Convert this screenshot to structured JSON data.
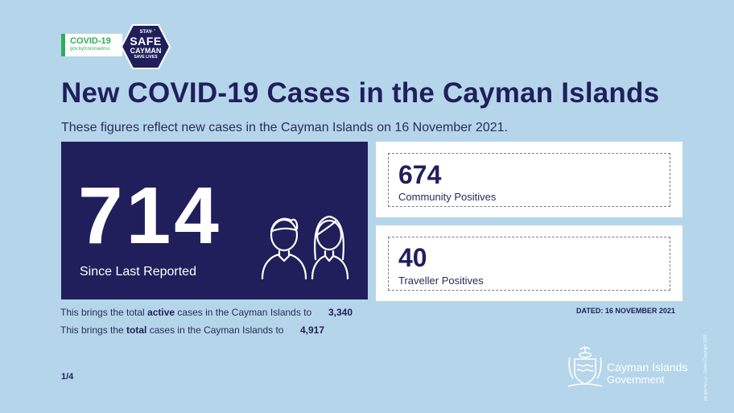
{
  "colors": {
    "background": "#b5d6ea",
    "navy": "#201f5c",
    "green": "#2fae5b",
    "white": "#ffffff"
  },
  "header": {
    "covid_label": "COVID-19",
    "covid_url": "gov.ky/coronavirus",
    "stay": "STAY",
    "safe": "SAFE",
    "cayman": "CAYMAN",
    "save_lives": "SAVE LIVES"
  },
  "title": "New COVID-19 Cases in the Cayman Islands",
  "subtitle": "These figures reflect new cases in the Cayman Islands on 16 November 2021.",
  "main_stat": {
    "value": "714",
    "label": "Since Last Reported"
  },
  "cards": [
    {
      "value": "674",
      "label": "Community Positives"
    },
    {
      "value": "40",
      "label": "Traveller Positives"
    }
  ],
  "totals": {
    "active_prefix": "This brings the total ",
    "active_bold": "active",
    "active_suffix": " cases in the Cayman Islands to",
    "active_value": "3,340",
    "total_prefix": "This brings the ",
    "total_bold": "total",
    "total_suffix": " cases in the Cayman Islands to",
    "total_value": "4,917"
  },
  "dated": "DATED: 16 NOVEMBER 2021",
  "page": "1/4",
  "footer": {
    "gov_name": "Cayman Islands",
    "gov_sub": "Government",
    "credit": "gis.gov.ky | © Crown Copyright 2021"
  },
  "icons": {
    "crest": "cayman-crest-icon",
    "people": "people-icon"
  }
}
